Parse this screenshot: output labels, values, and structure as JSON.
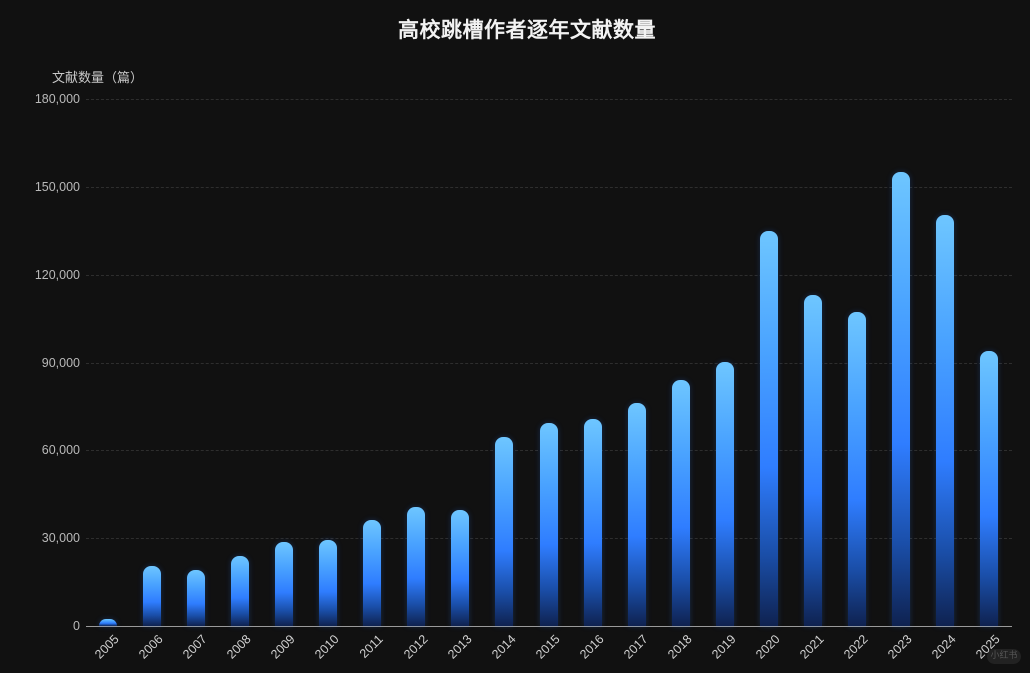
{
  "chart_data": {
    "type": "bar",
    "title": "高校跳槽作者逐年文献数量",
    "xlabel": "",
    "ylabel": "文献数量（篇）",
    "ylim": [
      0,
      180000
    ],
    "yticks": [
      0,
      30000,
      60000,
      90000,
      120000,
      150000,
      180000
    ],
    "ytick_labels": [
      "0",
      "30,000",
      "60,000",
      "90,000",
      "120,000",
      "150,000",
      "180,000"
    ],
    "grid": true,
    "legend": null,
    "categories": [
      "2005",
      "2006",
      "2007",
      "2008",
      "2009",
      "2010",
      "2011",
      "2012",
      "2013",
      "2014",
      "2015",
      "2016",
      "2017",
      "2018",
      "2019",
      "2020",
      "2021",
      "2022",
      "2023",
      "2024",
      "2025"
    ],
    "values": [
      2400,
      20500,
      19100,
      23900,
      28700,
      29400,
      36200,
      40600,
      39600,
      64500,
      69300,
      70700,
      76200,
      84000,
      90200,
      135000,
      113000,
      107200,
      155000,
      140400,
      93900
    ],
    "colors": {
      "background": "#111111",
      "bar_top": "#6ec6ff",
      "bar_mid": "#2f7dff",
      "bar_bottom": "#0f2250"
    }
  },
  "watermark": "小红书"
}
